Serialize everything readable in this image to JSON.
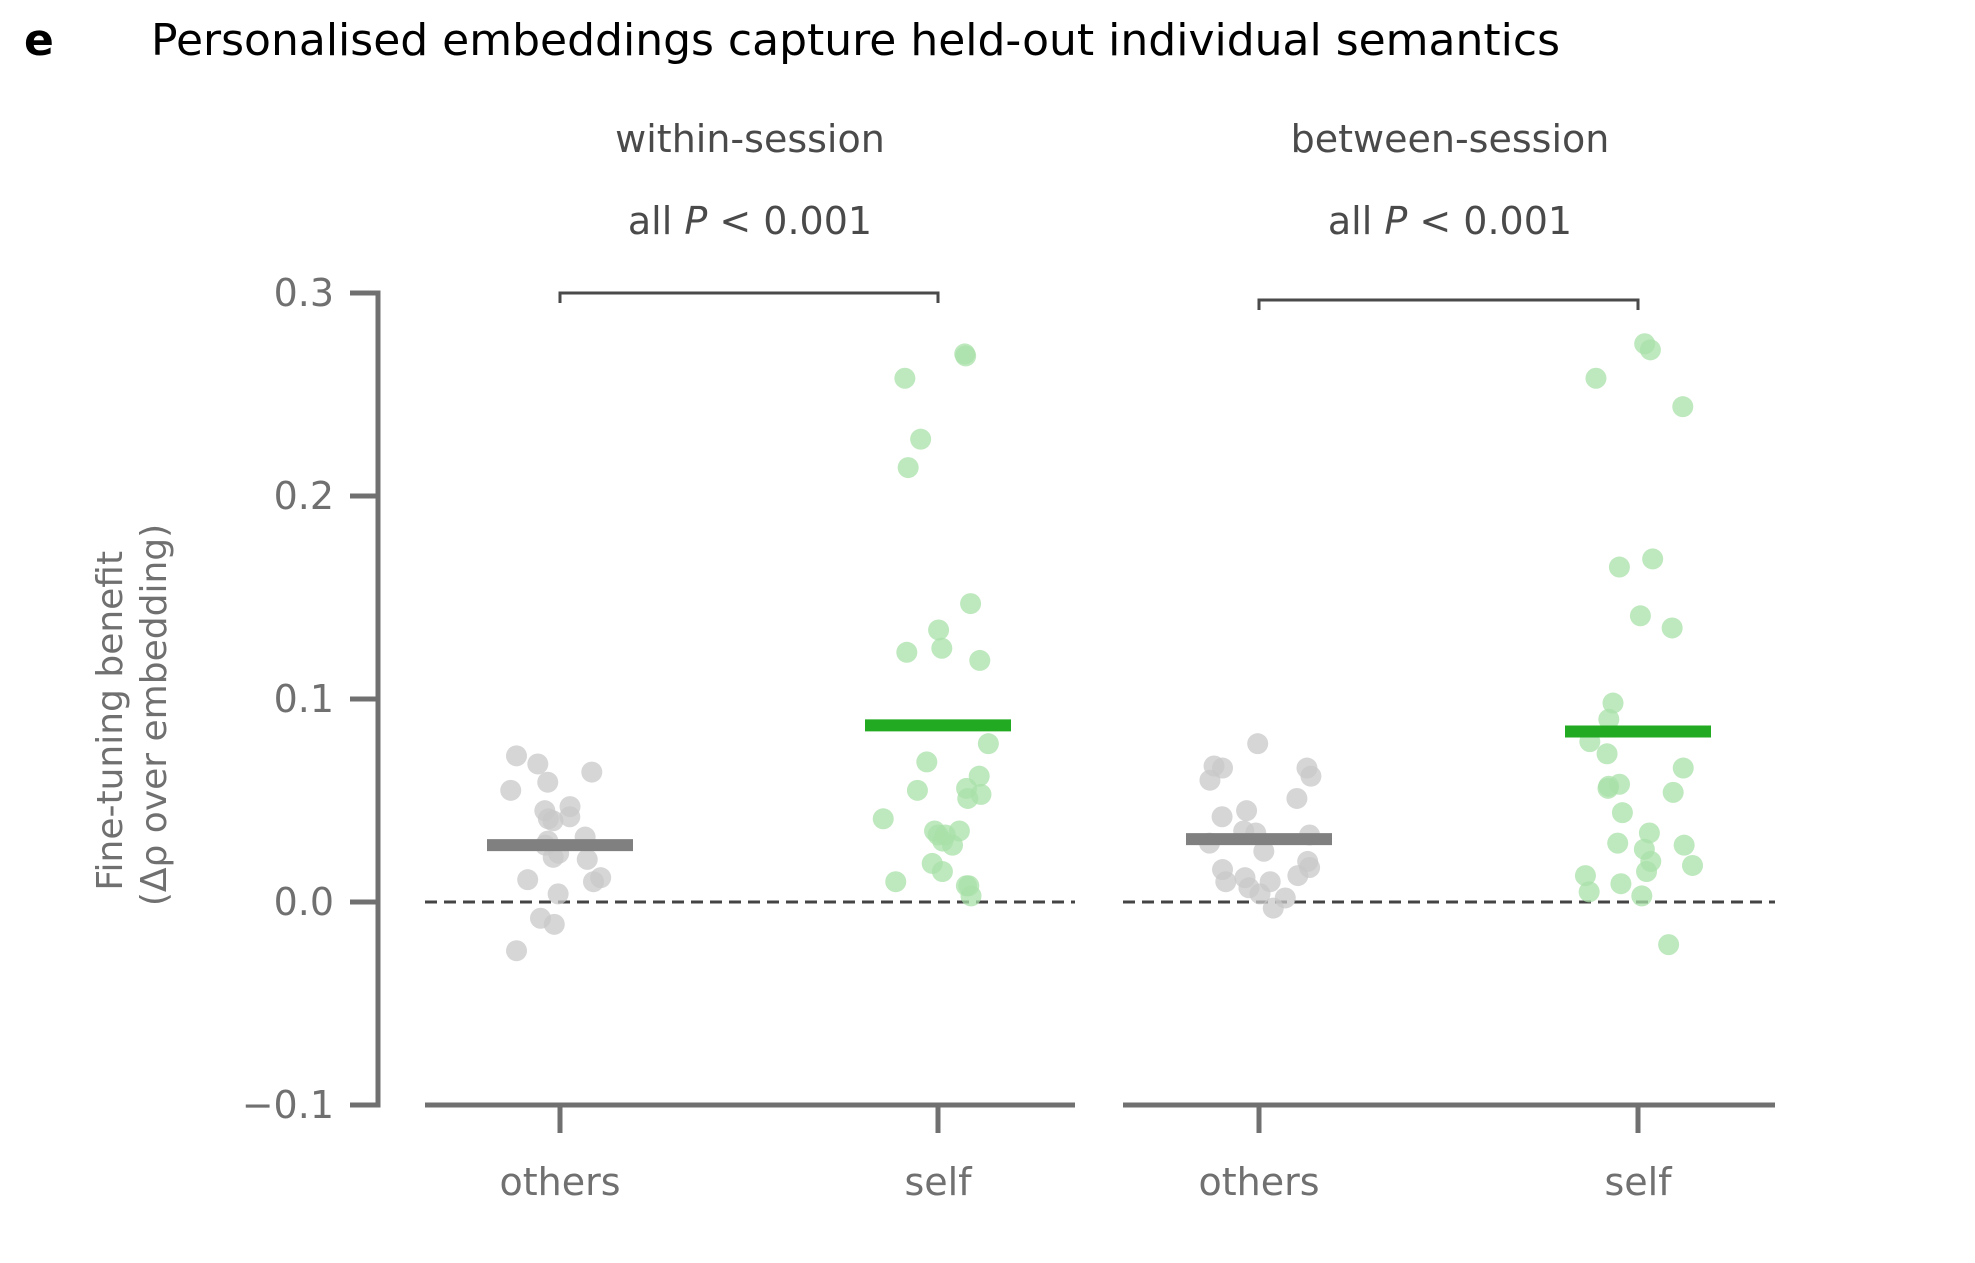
{
  "panel_label": "e",
  "title": "Personalised embeddings capture held-out individual semantics",
  "colors": {
    "axis": "#707070",
    "text_dark": "#4a4a4a",
    "others_mean": "#808080",
    "others_points": "#c8c8c8",
    "self_mean": "#22aa22",
    "self_points": "#a8e0a8",
    "reference_line": "#444444"
  },
  "chart_data": {
    "type": "scatter",
    "ylabel_line1": "Fine-tuning benefit",
    "ylabel_line2": "(Δρ over embedding)",
    "ylim": [
      -0.1,
      0.3
    ],
    "yticks": [
      -0.1,
      0.0,
      0.1,
      0.2,
      0.3
    ],
    "ytick_labels": [
      "−0.1",
      "0.0",
      "0.1",
      "0.2",
      "0.3"
    ],
    "reference_line_y": 0.0,
    "panels": [
      {
        "title": "within-session",
        "significance_prefix": "all ",
        "significance_var": "P",
        "significance_suffix": " < 0.001",
        "groups": [
          {
            "label": "others",
            "mean": 0.028,
            "values": [
              -0.024,
              0.004,
              -0.008,
              -0.011,
              0.011,
              0.012,
              0.01,
              0.021,
              0.022,
              0.024,
              0.028,
              0.03,
              0.032,
              0.04,
              0.041,
              0.042,
              0.045,
              0.047,
              0.055,
              0.059,
              0.064,
              0.068,
              0.072
            ]
          },
          {
            "label": "self",
            "mean": 0.087,
            "values": [
              0.003,
              0.008,
              0.008,
              0.01,
              0.015,
              0.019,
              0.028,
              0.03,
              0.033,
              0.033,
              0.035,
              0.035,
              0.041,
              0.051,
              0.053,
              0.055,
              0.056,
              0.062,
              0.069,
              0.078,
              0.119,
              0.123,
              0.125,
              0.134,
              0.147,
              0.214,
              0.228,
              0.258,
              0.269,
              0.27
            ]
          }
        ]
      },
      {
        "title": "between-session",
        "significance_prefix": "all ",
        "significance_var": "P",
        "significance_suffix": " < 0.001",
        "groups": [
          {
            "label": "others",
            "mean": 0.031,
            "values": [
              -0.003,
              0.002,
              0.004,
              0.007,
              0.01,
              0.01,
              0.012,
              0.013,
              0.016,
              0.017,
              0.02,
              0.025,
              0.029,
              0.033,
              0.034,
              0.035,
              0.042,
              0.045,
              0.051,
              0.06,
              0.062,
              0.066,
              0.066,
              0.067,
              0.078
            ]
          },
          {
            "label": "self",
            "mean": 0.084,
            "values": [
              -0.021,
              0.003,
              0.005,
              0.009,
              0.013,
              0.015,
              0.018,
              0.02,
              0.026,
              0.028,
              0.029,
              0.034,
              0.044,
              0.054,
              0.056,
              0.057,
              0.058,
              0.066,
              0.073,
              0.079,
              0.09,
              0.098,
              0.135,
              0.141,
              0.165,
              0.169,
              0.244,
              0.258,
              0.272,
              0.275
            ]
          }
        ]
      }
    ]
  }
}
